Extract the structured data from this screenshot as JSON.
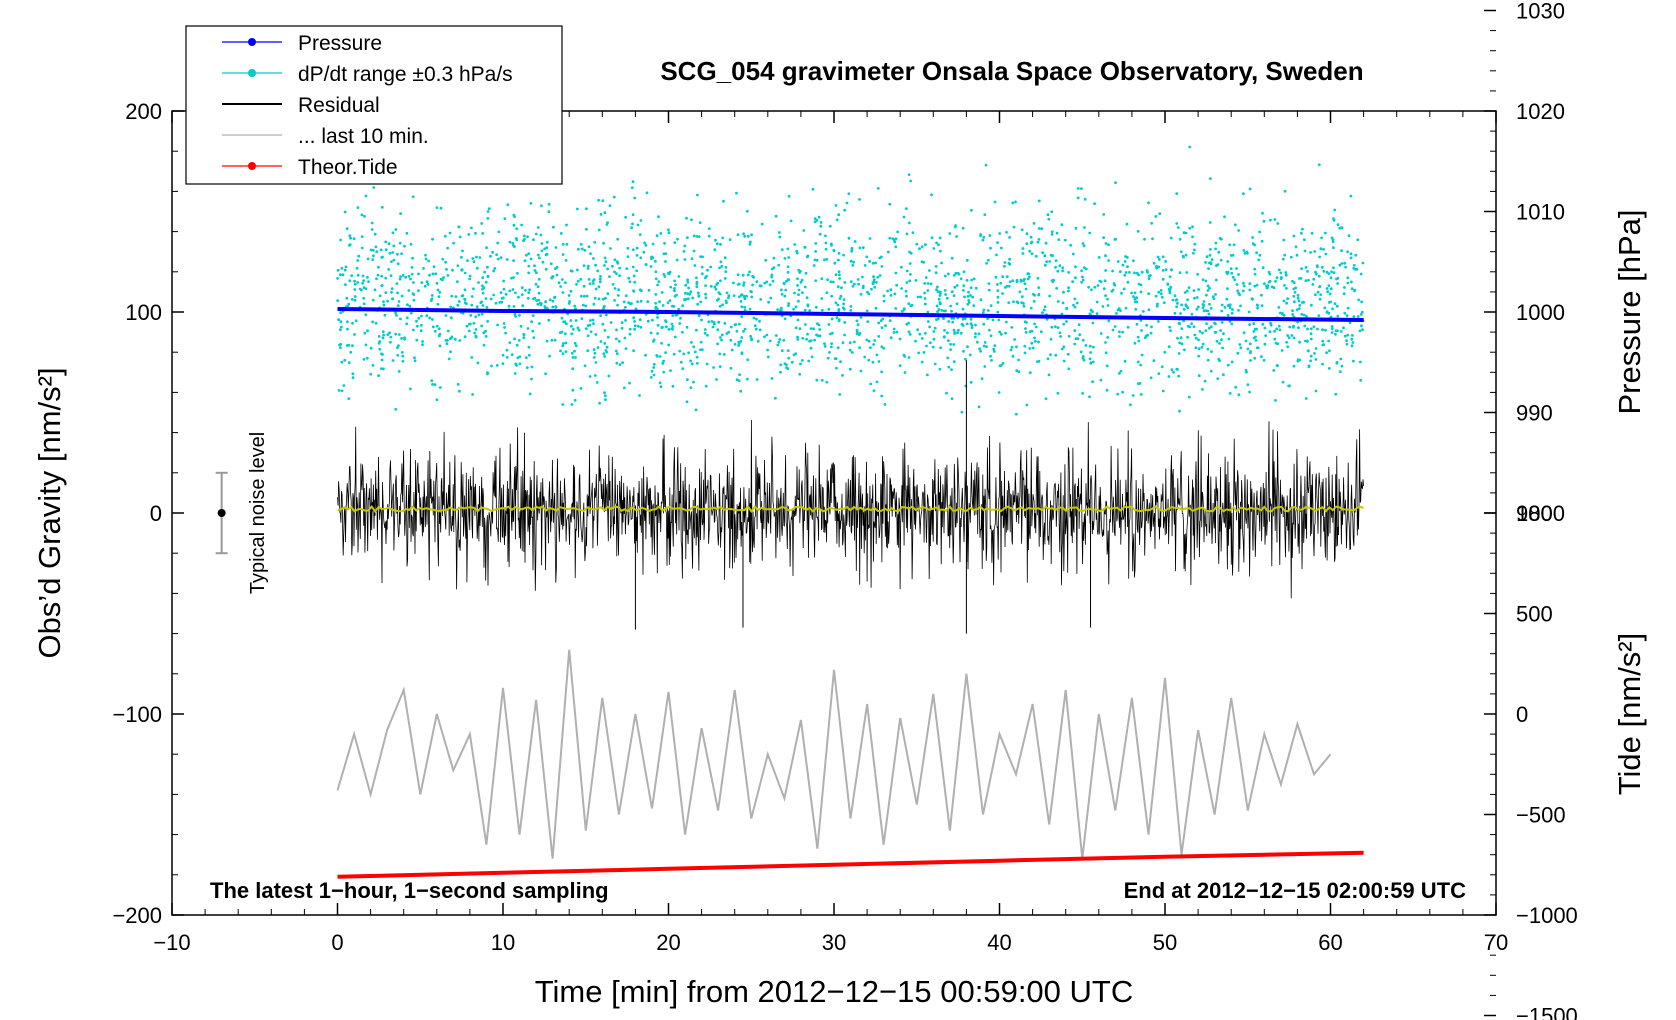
{
  "chart_data": {
    "type": "line",
    "title": "SCG_054 gravimeter Onsala Space Observatory, Sweden",
    "xlabel": "Time [min] from 2012−12−15 00:59:00 UTC",
    "ylabel_left": "Obs’d Gravity [nm/s²]",
    "ylabel_right_pressure": "Pressure [hPa]",
    "ylabel_right_tide": "Tide [nm/s²]",
    "xlim": [
      -10,
      70
    ],
    "ylim": [
      -200,
      200
    ],
    "xticks": [
      "−10",
      "0",
      "10",
      "20",
      "30",
      "40",
      "50",
      "60",
      "70"
    ],
    "yticks_left": [
      "200",
      "100",
      "0",
      "−100",
      "−200"
    ],
    "pressure_axis": {
      "ticks": [
        "1030",
        "1020",
        "1010",
        "1000",
        "990",
        "980"
      ],
      "values": [
        1030,
        1020,
        1010,
        1000,
        990,
        980
      ],
      "ref_value": 1000,
      "ref_gravity": 100,
      "scale": 5
    },
    "tide_axis": {
      "ticks": [
        "1000",
        "500",
        "0",
        "−500",
        "−1000",
        "−1500"
      ],
      "values": [
        1000,
        500,
        0,
        -500,
        -1000,
        -1500
      ],
      "ref_value": 0,
      "ref_gravity": -100,
      "scale": 0.1
    },
    "legend": {
      "placement": "top-left",
      "entries": [
        {
          "label": "Pressure",
          "color": "#0000ff",
          "marker": true
        },
        {
          "label": "dP/dt range ±0.3 hPa/s",
          "color": "#00cccc",
          "marker": true
        },
        {
          "label": "Residual",
          "color": "#000000",
          "marker": false
        },
        {
          "label": "... last 10 min.",
          "color": "#b0b0b0",
          "marker": false
        },
        {
          "label": "Theor.Tide",
          "color": "#ff0000",
          "marker": true
        }
      ]
    },
    "annotations": {
      "bottom_left": "The latest 1−hour, 1−second sampling",
      "bottom_right": "End at 2012−12−15 02:00:59 UTC",
      "noise_label": "Typical noise level"
    },
    "noise_bar": {
      "x": -7,
      "center": 0,
      "half_range": 20
    },
    "series": [
      {
        "name": "Pressure",
        "color": "#0000ff",
        "x": [
          0,
          10,
          20,
          30,
          40,
          50,
          62
        ],
        "y": [
          101.5,
          100.5,
          100,
          99,
          98,
          97,
          96
        ]
      },
      {
        "name": "Theor.Tide",
        "color": "#ff0000",
        "x": [
          0,
          10,
          20,
          30,
          40,
          50,
          62
        ],
        "y": [
          -181,
          -179,
          -177,
          -175,
          -173,
          -171,
          -169
        ]
      },
      {
        "name": "... last 10 min.",
        "color": "#b0b0b0",
        "x": [
          0,
          1,
          2,
          3,
          4,
          5,
          6,
          7,
          8,
          9,
          10,
          11,
          12,
          13,
          14,
          15,
          16,
          17,
          18,
          19,
          20,
          21,
          22,
          23,
          24,
          25,
          26,
          27,
          28,
          29,
          30,
          31,
          32,
          33,
          34,
          35,
          36,
          37,
          38,
          39,
          40,
          41,
          42,
          43,
          44,
          45,
          46,
          47,
          48,
          49,
          50,
          51,
          52,
          53,
          54,
          55,
          56,
          57,
          58,
          59,
          60
        ],
        "y": [
          -138,
          -110,
          -140,
          -108,
          -88,
          -140,
          -100,
          -128,
          -110,
          -165,
          -87,
          -160,
          -93,
          -172,
          -68,
          -158,
          -92,
          -150,
          -100,
          -147,
          -89,
          -160,
          -107,
          -148,
          -88,
          -152,
          -120,
          -142,
          -103,
          -167,
          -78,
          -152,
          -95,
          -165,
          -102,
          -145,
          -90,
          -158,
          -80,
          -150,
          -110,
          -130,
          -95,
          -155,
          -88,
          -172,
          -100,
          -148,
          -92,
          -160,
          -82,
          -170,
          -108,
          -150,
          -92,
          -148,
          -110,
          -135,
          -105,
          -130,
          -120
        ]
      },
      {
        "name": "Residual",
        "color": "#000000",
        "x": [
          0,
          62
        ],
        "y": [
          2,
          2
        ],
        "envelope": 45,
        "peaks": [
          {
            "x": 38,
            "y": 76
          },
          {
            "x": 38,
            "y": -60
          },
          {
            "x": 18,
            "y": -58
          },
          {
            "x": 24.5,
            "y": -57
          },
          {
            "x": 45.5,
            "y": -57
          }
        ]
      },
      {
        "name": "Residual (smoothed)",
        "color": "#c8c800",
        "x": [
          0,
          62
        ],
        "y": [
          2,
          2
        ]
      },
      {
        "name": "dP/dt range ±0.3 hPa/s",
        "color": "#00cccc",
        "type": "scatter",
        "y_range": [
          40,
          170
        ],
        "x_range": [
          0,
          62
        ]
      }
    ]
  }
}
